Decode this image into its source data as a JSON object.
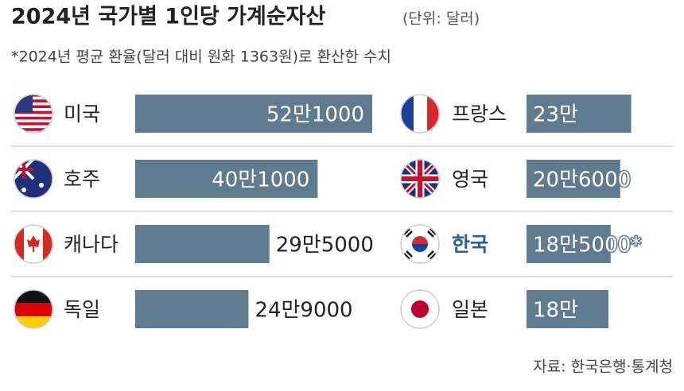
{
  "chart_data": {
    "type": "bar",
    "title": "2024년 국가별 1인당 가계순자산",
    "unit": "(단위: 달러)",
    "note": "*2024년 평균 환율(달러 대비 원화 1363원)로 환산한 수치",
    "source": "자료: 한국은행·통계청",
    "categories": [
      "미국",
      "호주",
      "캐나다",
      "독일",
      "프랑스",
      "영국",
      "한국",
      "일본"
    ],
    "values": [
      521000,
      401000,
      295000,
      249000,
      230000,
      206000,
      185000,
      180000
    ],
    "value_labels": [
      "52만1000",
      "40만1000",
      "29만5000",
      "24만9000",
      "23만",
      "20만6000",
      "18만5000*",
      "18만"
    ],
    "color": "#5e7b8f",
    "label_colors": [
      "#222222",
      "#222222",
      "#222222",
      "#222222",
      "#222222",
      "#222222",
      "#2b5f95",
      "#222222"
    ]
  }
}
